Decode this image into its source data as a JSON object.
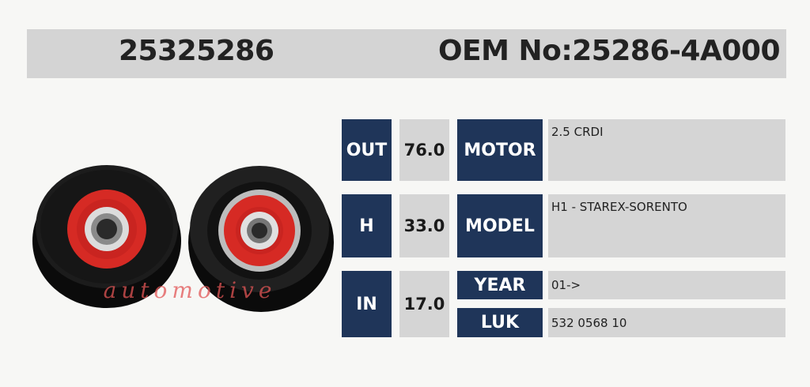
{
  "header": {
    "part_number": "25325286",
    "oem_number": "OEM No:25286-4A000"
  },
  "image": {
    "watermark": "automotive",
    "description_icon": "tensioner-pulley-icon"
  },
  "dimensions": [
    {
      "label": "OUT",
      "value": "76.0"
    },
    {
      "label": "H",
      "value": "33.0"
    },
    {
      "label": "IN",
      "value": "17.0"
    }
  ],
  "specs": {
    "motor": {
      "label": "MOTOR",
      "value": "2.5 CRDI"
    },
    "model": {
      "label": "MODEL",
      "value": "H1 - STAREX-SORENTO"
    },
    "year": {
      "label": "YEAR",
      "value": "01->"
    },
    "luk": {
      "label": "LUK",
      "value": "532 0568 10"
    }
  },
  "colors": {
    "label_bg": "#1f3559",
    "value_bg": "#d5d5d5",
    "accent_red": "#d62a24"
  }
}
